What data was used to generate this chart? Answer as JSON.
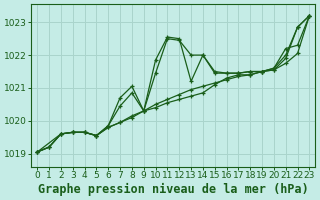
{
  "background_color": "#c5ece6",
  "grid_color": "#aad4cc",
  "line_color": "#1a5e1a",
  "marker_color": "#1a5e1a",
  "title": "Graphe pression niveau de la mer (hPa)",
  "xlim": [
    -0.5,
    23.5
  ],
  "ylim": [
    1018.6,
    1023.55
  ],
  "yticks": [
    1019,
    1020,
    1021,
    1022,
    1023
  ],
  "xticks": [
    0,
    1,
    2,
    3,
    4,
    5,
    6,
    7,
    8,
    9,
    10,
    11,
    12,
    13,
    14,
    15,
    16,
    17,
    18,
    19,
    20,
    21,
    22,
    23
  ],
  "title_fontsize": 8.5,
  "tick_fontsize": 6.5,
  "title_color": "#1a5e1a",
  "tick_color": "#1a5e1a",
  "series_1_x": [
    0,
    1,
    2,
    3,
    4,
    5,
    6,
    7,
    8,
    9,
    10,
    11,
    12,
    13,
    14,
    15,
    16,
    17,
    18,
    19,
    20,
    21,
    22,
    23
  ],
  "series_1_y": [
    1019.05,
    1019.2,
    1019.6,
    1019.65,
    1019.65,
    1019.55,
    1019.85,
    1020.45,
    1020.85,
    1020.3,
    1021.45,
    1022.5,
    1022.45,
    1022.0,
    1022.0,
    1021.5,
    1021.45,
    1021.45,
    1021.5,
    1021.5,
    1021.6,
    1022.0,
    1022.85,
    1023.2
  ],
  "series_2_x": [
    0,
    1,
    2,
    3,
    4,
    5,
    6,
    7,
    8,
    9,
    10,
    11,
    12,
    13,
    14,
    15,
    16,
    17,
    18,
    19,
    20,
    21,
    22,
    23
  ],
  "series_2_y": [
    1019.05,
    1019.2,
    1019.6,
    1019.65,
    1019.65,
    1019.55,
    1019.8,
    1019.95,
    1020.15,
    1020.3,
    1020.5,
    1020.65,
    1020.8,
    1020.95,
    1021.05,
    1021.15,
    1021.25,
    1021.35,
    1021.4,
    1021.5,
    1021.55,
    1021.75,
    1022.05,
    1023.2
  ],
  "series_3_x": [
    0,
    1,
    2,
    3,
    4,
    5,
    6,
    7,
    8,
    9,
    10,
    11,
    12,
    13,
    14,
    15,
    16,
    17,
    18,
    19,
    20,
    21,
    22,
    23
  ],
  "series_3_y": [
    1019.05,
    1019.2,
    1019.6,
    1019.65,
    1019.65,
    1019.55,
    1019.8,
    1019.95,
    1020.1,
    1020.3,
    1020.4,
    1020.55,
    1020.65,
    1020.75,
    1020.85,
    1021.1,
    1021.3,
    1021.4,
    1021.4,
    1021.5,
    1021.55,
    1021.9,
    1022.85,
    1023.2
  ],
  "series_4_x": [
    0,
    2,
    3,
    4,
    5,
    6,
    7,
    8,
    9,
    10,
    11,
    12,
    13,
    14,
    15,
    16,
    17,
    18,
    19,
    20,
    21,
    22,
    23
  ],
  "series_4_y": [
    1019.05,
    1019.6,
    1019.65,
    1019.65,
    1019.55,
    1019.85,
    1020.7,
    1021.05,
    1020.3,
    1021.85,
    1022.55,
    1022.5,
    1021.2,
    1022.0,
    1021.45,
    1021.45,
    1021.45,
    1021.5,
    1021.5,
    1021.6,
    1022.2,
    1022.3,
    1023.2
  ]
}
